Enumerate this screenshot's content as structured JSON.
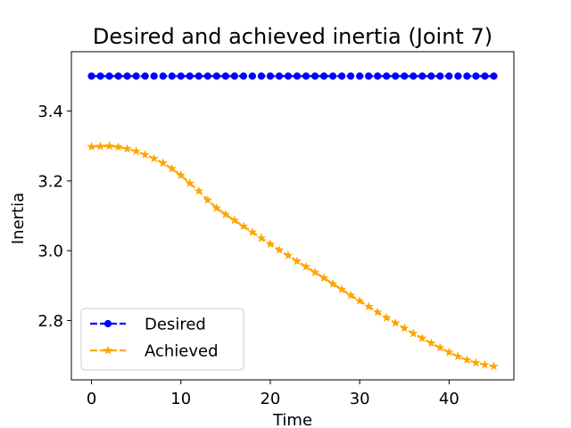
{
  "chart_data": {
    "type": "line",
    "title": "Desired and achieved inertia (Joint 7)",
    "xlabel": "Time",
    "ylabel": "Inertia",
    "xlim": [
      -2.25,
      47.25
    ],
    "ylim": [
      2.63,
      3.57
    ],
    "xticks": [
      0,
      10,
      20,
      30,
      40
    ],
    "xtick_labels": [
      "0",
      "10",
      "20",
      "30",
      "40"
    ],
    "yticks": [
      2.8,
      3.0,
      3.2,
      3.4
    ],
    "ytick_labels": [
      "2.8",
      "3.0",
      "3.2",
      "3.4"
    ],
    "grid": false,
    "legend_position": "lower-left",
    "series": [
      {
        "name": "Desired",
        "color": "#0000ff",
        "marker": "circle",
        "linestyle": "dashed",
        "x": [
          0,
          1,
          2,
          3,
          4,
          5,
          6,
          7,
          8,
          9,
          10,
          11,
          12,
          13,
          14,
          15,
          16,
          17,
          18,
          19,
          20,
          21,
          22,
          23,
          24,
          25,
          26,
          27,
          28,
          29,
          30,
          31,
          32,
          33,
          34,
          35,
          36,
          37,
          38,
          39,
          40,
          41,
          42,
          43,
          44,
          45
        ],
        "y": [
          3.5,
          3.5,
          3.5,
          3.5,
          3.5,
          3.5,
          3.5,
          3.5,
          3.5,
          3.5,
          3.5,
          3.5,
          3.5,
          3.5,
          3.5,
          3.5,
          3.5,
          3.5,
          3.5,
          3.5,
          3.5,
          3.5,
          3.5,
          3.5,
          3.5,
          3.5,
          3.5,
          3.5,
          3.5,
          3.5,
          3.5,
          3.5,
          3.5,
          3.5,
          3.5,
          3.5,
          3.5,
          3.5,
          3.5,
          3.5,
          3.5,
          3.5,
          3.5,
          3.5,
          3.5,
          3.5
        ]
      },
      {
        "name": "Achieved",
        "color": "#ffa500",
        "marker": "star",
        "linestyle": "dashed",
        "x": [
          0,
          1,
          2,
          3,
          4,
          5,
          6,
          7,
          8,
          9,
          10,
          11,
          12,
          13,
          14,
          15,
          16,
          17,
          18,
          19,
          20,
          21,
          22,
          23,
          24,
          25,
          26,
          27,
          28,
          29,
          30,
          31,
          32,
          33,
          34,
          35,
          36,
          37,
          38,
          39,
          40,
          41,
          42,
          43,
          44,
          45
        ],
        "y": [
          3.298,
          3.299,
          3.3,
          3.297,
          3.292,
          3.285,
          3.275,
          3.264,
          3.251,
          3.235,
          3.216,
          3.193,
          3.171,
          3.145,
          3.122,
          3.104,
          3.087,
          3.07,
          3.053,
          3.036,
          3.019,
          3.002,
          2.986,
          2.97,
          2.954,
          2.938,
          2.922,
          2.905,
          2.889,
          2.872,
          2.856,
          2.84,
          2.824,
          2.808,
          2.793,
          2.778,
          2.763,
          2.749,
          2.735,
          2.722,
          2.709,
          2.697,
          2.687,
          2.679,
          2.673,
          2.669
        ]
      }
    ]
  }
}
